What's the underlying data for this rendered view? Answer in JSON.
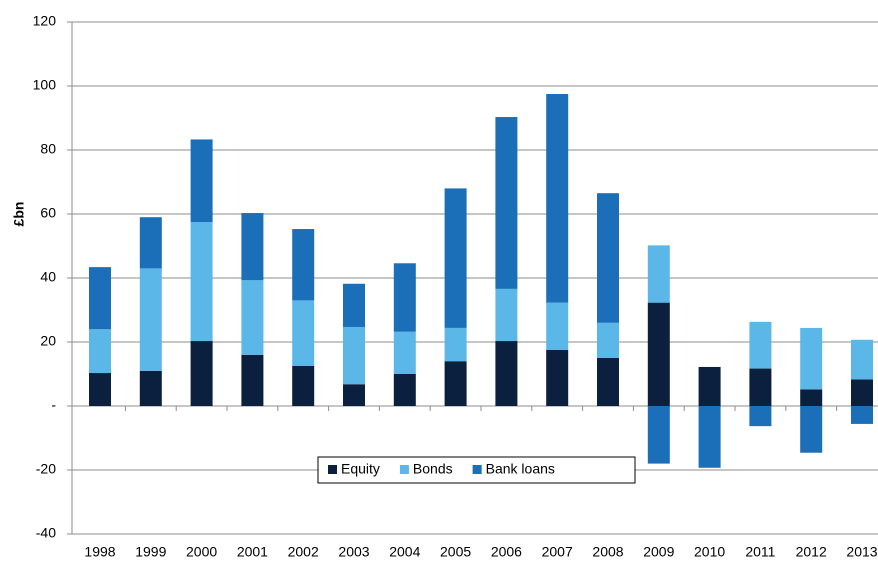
{
  "chart_data": {
    "type": "bar",
    "stacked": true,
    "y_label": "£bn",
    "categories": [
      "1998",
      "1999",
      "2000",
      "2001",
      "2002",
      "2003",
      "2004",
      "2005",
      "2006",
      "2007",
      "2008",
      "2009",
      "2010",
      "2011",
      "2012",
      "2013"
    ],
    "series": [
      {
        "name": "Equity",
        "color": "#0b1f3f",
        "values": [
          10.3,
          11,
          20.3,
          16,
          12.5,
          6.8,
          10,
          14,
          20.3,
          17.5,
          15,
          32.3,
          12.2,
          11.7,
          5.2,
          8.3
        ]
      },
      {
        "name": "Bonds",
        "color": "#5bb7e8",
        "values": [
          13.7,
          32,
          37.2,
          23.3,
          20.5,
          17.9,
          13.2,
          10.4,
          16.3,
          14.8,
          11,
          17.9,
          0,
          14.6,
          19.2,
          12.4
        ]
      },
      {
        "name": "Bank loans",
        "color": "#1a6fb8",
        "values": [
          19.4,
          16,
          25.8,
          21,
          22.3,
          13.5,
          21.4,
          43.6,
          53.7,
          65.2,
          40.5,
          -18,
          -19.3,
          -6.3,
          -14.6,
          -5.6
        ]
      }
    ],
    "ylim": [
      -40,
      120
    ],
    "yticks": [
      -40,
      -20,
      {
        "value": 0,
        "label": "-"
      },
      20,
      40,
      60,
      80,
      100,
      120
    ],
    "grid": true,
    "legend": "bottom"
  }
}
